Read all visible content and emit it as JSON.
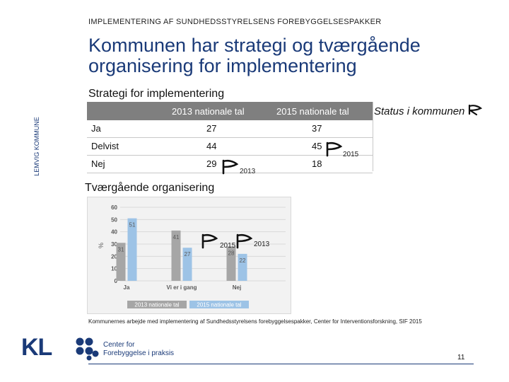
{
  "header": {
    "kicker": "IMPLEMENTERING AF SUNDHEDSSTYRELSENS FOREBYGGELSESPAKKER",
    "title": "Kommunen har strategi og tværgående organisering for implementering",
    "side_label": "LEMVIG KOMMUNE"
  },
  "strategy": {
    "section_title": "Strategi for implementering",
    "columns": [
      "2013 nationale tal",
      "2015 nationale tal"
    ],
    "rows": [
      {
        "label": "Ja",
        "v2013": "27",
        "v2015": "37"
      },
      {
        "label": "Delvist",
        "v2013": "44",
        "v2015": "45"
      },
      {
        "label": "Nej",
        "v2013": "29",
        "v2015": "18"
      }
    ],
    "status_label": "Status i kommunen",
    "marker_2015": "2015",
    "marker_2013": "2013"
  },
  "organisation": {
    "section_title": "Tværgående organisering",
    "marker_2015": "2015",
    "marker_2013": "2013"
  },
  "chart_data": {
    "type": "bar",
    "title": "",
    "ylabel": "%",
    "xlabel": "",
    "ylim": [
      0,
      60
    ],
    "yticks": [
      "0",
      "10",
      "20",
      "30",
      "40",
      "50",
      "60"
    ],
    "categories": [
      "Ja",
      "Vi er i gang",
      "Nej"
    ],
    "series": [
      {
        "name": "2013 nationale tal",
        "values": [
          31,
          41,
          28
        ],
        "labels": [
          "31",
          "41",
          "28"
        ],
        "color": "#a6a6a6"
      },
      {
        "name": "2015 nationale tal",
        "values": [
          51,
          27,
          22
        ],
        "labels": [
          "51",
          "27",
          "22"
        ],
        "color": "#9dc3e6"
      }
    ],
    "legend": "bottom"
  },
  "footer": {
    "source": "Kommunernes arbejde med implementering af Sundhedsstyrelsens forebyggelsespakker, Center for Interventionsforskning, SIF 2015",
    "page_number": "11",
    "kl_logo": "KL",
    "org_line1": "Center for",
    "org_line2": "Forebyggelse i praksis"
  },
  "colors": {
    "brand": "#1a3a78",
    "table_header": "#7f7f7f"
  }
}
